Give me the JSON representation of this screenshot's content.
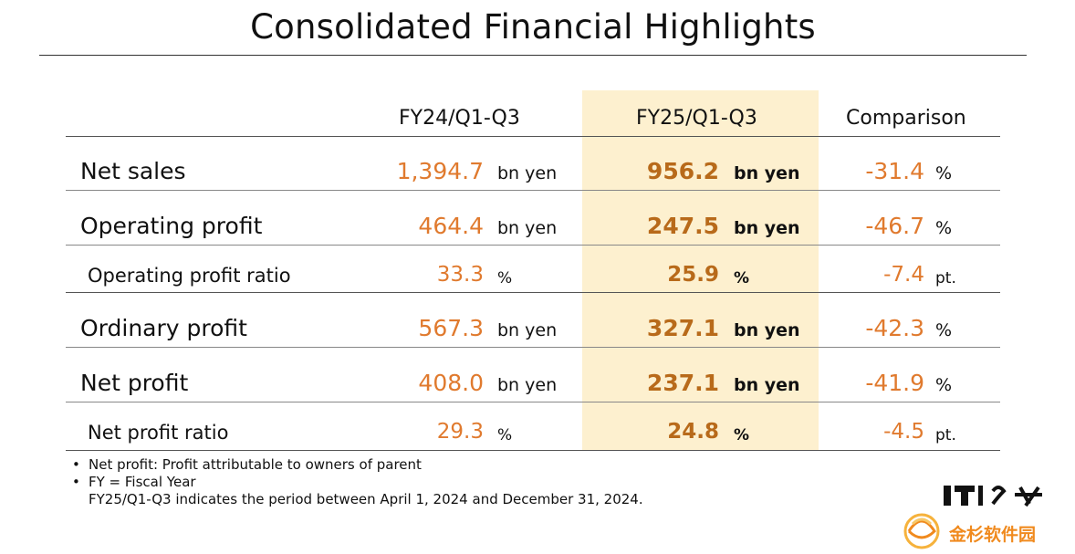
{
  "title": "Consolidated Financial Highlights",
  "columns": {
    "prev": "FY24/Q1-Q3",
    "curr": "FY25/Q1-Q3",
    "cmp": "Comparison"
  },
  "rows": [
    {
      "label": "Net sales",
      "prev": "1,394.7",
      "prev_unit": "bn yen",
      "curr": "956.2",
      "curr_unit": "bn yen",
      "cmp": "-31.4",
      "cmp_unit": "%"
    },
    {
      "label": "Operating profit",
      "prev": "464.4",
      "prev_unit": "bn yen",
      "curr": "247.5",
      "curr_unit": "bn yen",
      "cmp": "-46.7",
      "cmp_unit": "%"
    },
    {
      "label": "Operating profit ratio",
      "prev": "33.3",
      "prev_unit": "%",
      "curr": "25.9",
      "curr_unit": "%",
      "cmp": "-7.4",
      "cmp_unit": "pt."
    },
    {
      "label": "Ordinary profit",
      "prev": "567.3",
      "prev_unit": "bn yen",
      "curr": "327.1",
      "curr_unit": "bn yen",
      "cmp": "-42.3",
      "cmp_unit": "%"
    },
    {
      "label": "Net profit",
      "prev": "408.0",
      "prev_unit": "bn yen",
      "curr": "237.1",
      "curr_unit": "bn yen",
      "cmp": "-41.9",
      "cmp_unit": "%"
    },
    {
      "label": "Net profit ratio",
      "prev": "29.3",
      "prev_unit": "%",
      "curr": "24.8",
      "curr_unit": "%",
      "cmp": "-4.5",
      "cmp_unit": "pt."
    }
  ],
  "notes": [
    {
      "bullet": "•",
      "text": "Net profit: Profit attributable to owners of parent"
    },
    {
      "bullet": "•",
      "text": "FY = Fiscal Year"
    },
    {
      "bullet": "",
      "text": "FY25/Q1-Q3 indicates the period between April 1, 2024 and December 31, 2024."
    }
  ],
  "watermark": {
    "text": "金杉软件园",
    "logo_text": "ITdo"
  },
  "colors": {
    "orange_value": "#e07a2e",
    "bold_value": "#b86a1a",
    "highlight": "#fdf0cf",
    "watermark": "#f08a1e"
  }
}
